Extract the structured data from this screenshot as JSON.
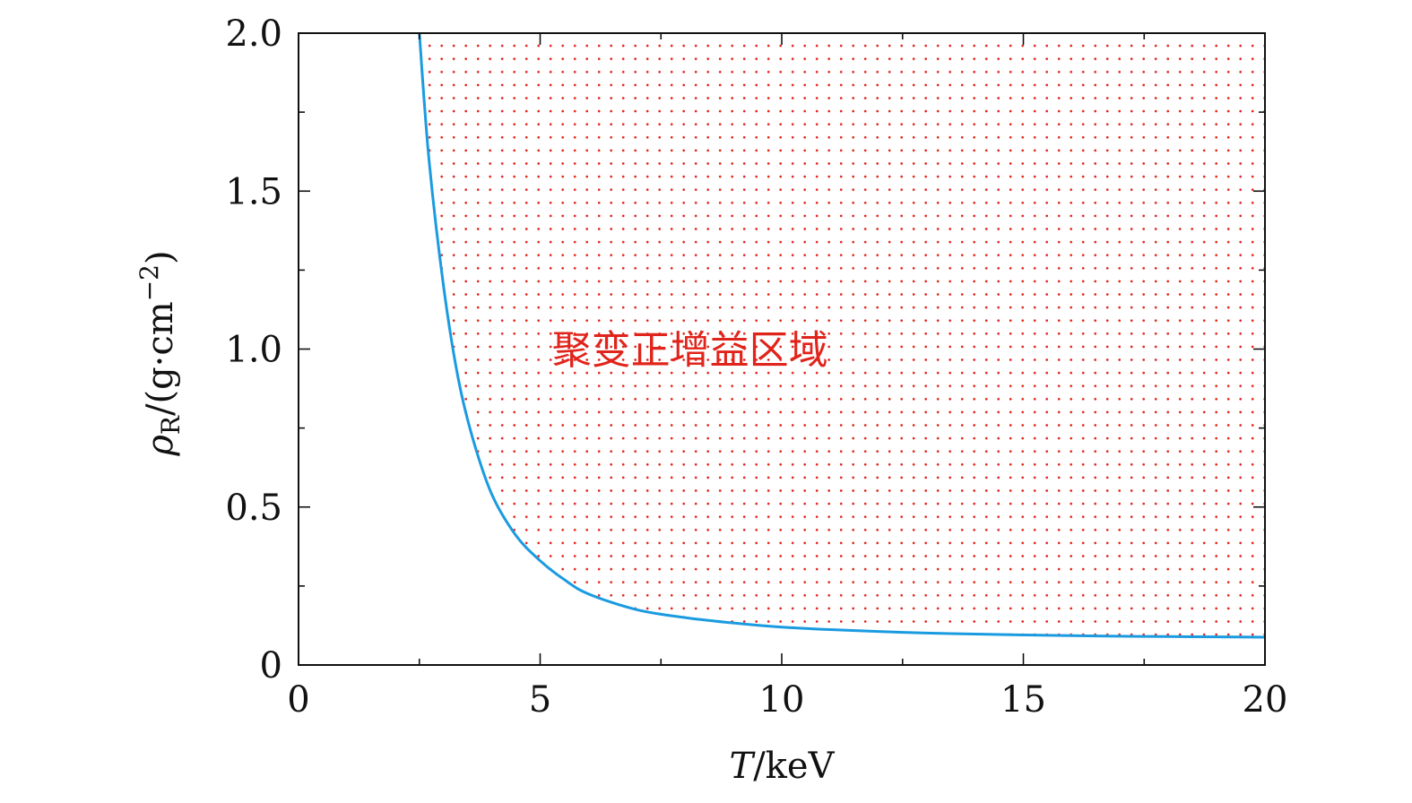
{
  "chart_data": {
    "type": "line",
    "xlabel": {
      "italic": "T",
      "rest": "/keV"
    },
    "ylabel": {
      "rho": "ρ",
      "sub": "R",
      "rest": "/(g·cm",
      "sup": "−2",
      "close": ")"
    },
    "xlim": [
      0,
      20
    ],
    "ylim": [
      0,
      2.0
    ],
    "xticks": [
      0,
      5,
      10,
      15,
      20
    ],
    "xtick_labels": [
      "0",
      "5",
      "10",
      "15",
      "20"
    ],
    "yticks": [
      0,
      0.5,
      1.0,
      1.5,
      2.0
    ],
    "ytick_labels": [
      "0",
      "0.5",
      "1.0",
      "1.5",
      "2.0"
    ],
    "x_minor_step": 2.5,
    "y_minor_step": 0.25,
    "grid": false,
    "series": [
      {
        "color": "#1a9be0",
        "x": [
          2.5,
          2.7,
          3.0,
          3.3,
          3.6,
          4.0,
          4.5,
          5.0,
          5.5,
          6.0,
          7.0,
          8.0,
          9.0,
          10.0,
          11.0,
          12.0,
          13.0,
          14.0,
          15.0,
          16.0,
          17.0,
          18.0,
          19.0,
          20.0
        ],
        "y": [
          2.0,
          1.6,
          1.2,
          0.91,
          0.72,
          0.54,
          0.41,
          0.33,
          0.27,
          0.225,
          0.175,
          0.15,
          0.133,
          0.12,
          0.112,
          0.106,
          0.101,
          0.098,
          0.095,
          0.093,
          0.091,
          0.09,
          0.089,
          0.088
        ]
      }
    ],
    "shaded_region": {
      "pattern": "red-dots",
      "color": "#e0241b",
      "label": "聚变正增益区域",
      "label_at": [
        8.1,
        1.0
      ]
    }
  }
}
